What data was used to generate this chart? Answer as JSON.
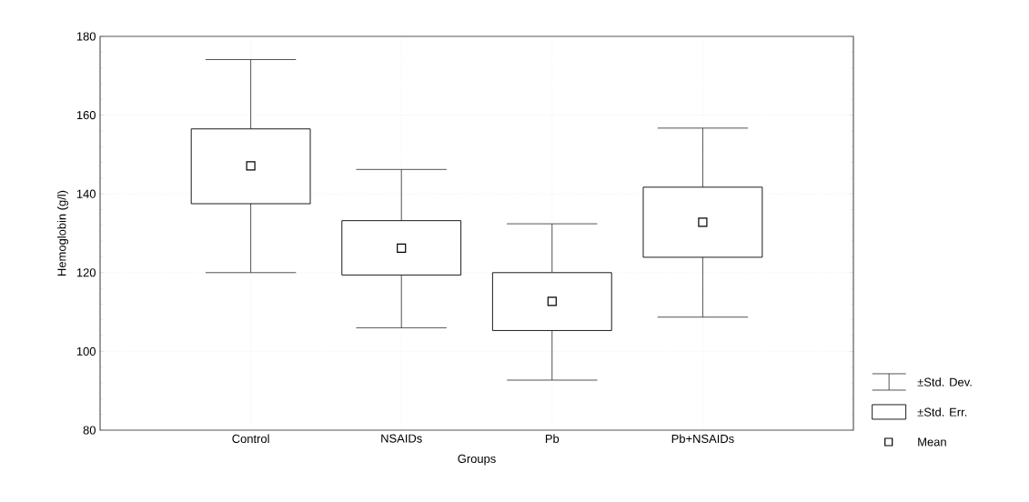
{
  "chart_data": {
    "type": "box",
    "xlabel": "Groups",
    "ylabel": "Hemoglobin (g/l)",
    "categories": [
      "Control",
      "NSAIDs",
      "Pb",
      "Pb+NSAIDs"
    ],
    "boxes": [
      {
        "low": 120,
        "q1": 137.5,
        "mean": 147.1,
        "q3": 156.5,
        "high": 174.1
      },
      {
        "low": 106,
        "q1": 119.4,
        "mean": 126.2,
        "q3": 133.2,
        "high": 146.2
      },
      {
        "low": 92.7,
        "q1": 105.3,
        "mean": 112.7,
        "q3": 120,
        "high": 132.4
      },
      {
        "low": 108.7,
        "q1": 123.9,
        "mean": 132.8,
        "q3": 141.7,
        "high": 156.7
      }
    ],
    "color": "#000000",
    "ylim": [
      80,
      180
    ],
    "yticks": [
      80,
      100,
      120,
      140,
      160,
      180
    ],
    "grid": true,
    "marker": "square",
    "annotations": [
      "±Std. Dev.",
      "±Std. Err.",
      "Mean"
    ]
  }
}
